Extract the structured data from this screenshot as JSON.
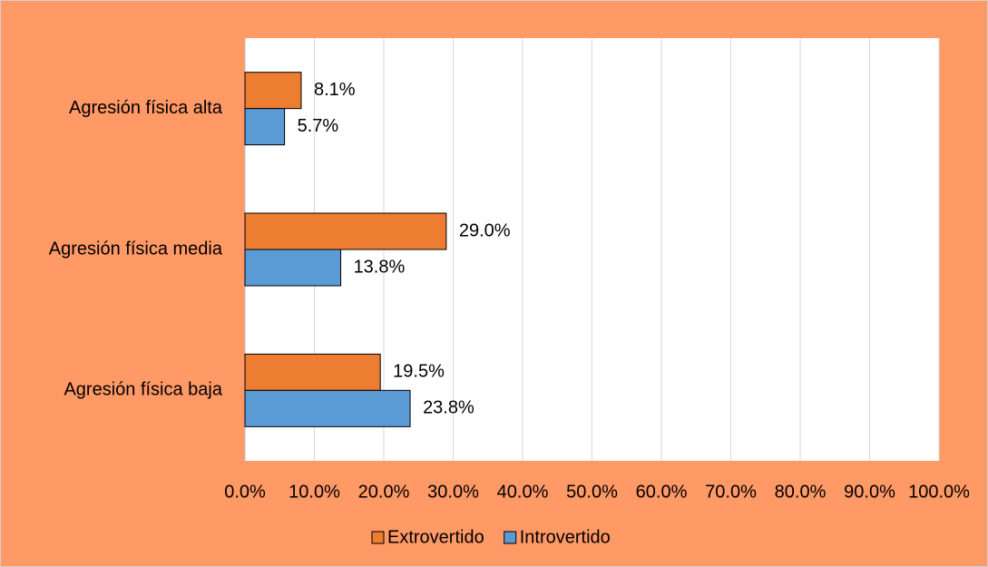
{
  "chart_data": {
    "type": "hbar",
    "categories": [
      "Agresión física alta",
      "Agresión física media",
      "Agresión física baja"
    ],
    "series": [
      {
        "name": "Extrovertido",
        "color": "#ed7d31",
        "values": [
          8.1,
          29.0,
          19.5
        ],
        "value_labels": [
          "8.1%",
          "29.0%",
          "19.5%"
        ]
      },
      {
        "name": "Introvertido",
        "color": "#5b9bd5",
        "values": [
          5.7,
          13.8,
          23.8
        ],
        "value_labels": [
          "5.7%",
          "13.8%",
          "23.8%"
        ]
      }
    ],
    "xlim": [
      0,
      100
    ],
    "xticks": [
      {
        "value": 0,
        "label": "0.0%"
      },
      {
        "value": 10,
        "label": "10.0%"
      },
      {
        "value": 20,
        "label": "20.0%"
      },
      {
        "value": 30,
        "label": "30.0%"
      },
      {
        "value": 40,
        "label": "40.0%"
      },
      {
        "value": 50,
        "label": "50.0%"
      },
      {
        "value": 60,
        "label": "60.0%"
      },
      {
        "value": 70,
        "label": "70.0%"
      },
      {
        "value": 80,
        "label": "80.0%"
      },
      {
        "value": 90,
        "label": "90.0%"
      },
      {
        "value": 100,
        "label": "100.0%"
      }
    ],
    "grid": true,
    "legend": "bottom"
  }
}
